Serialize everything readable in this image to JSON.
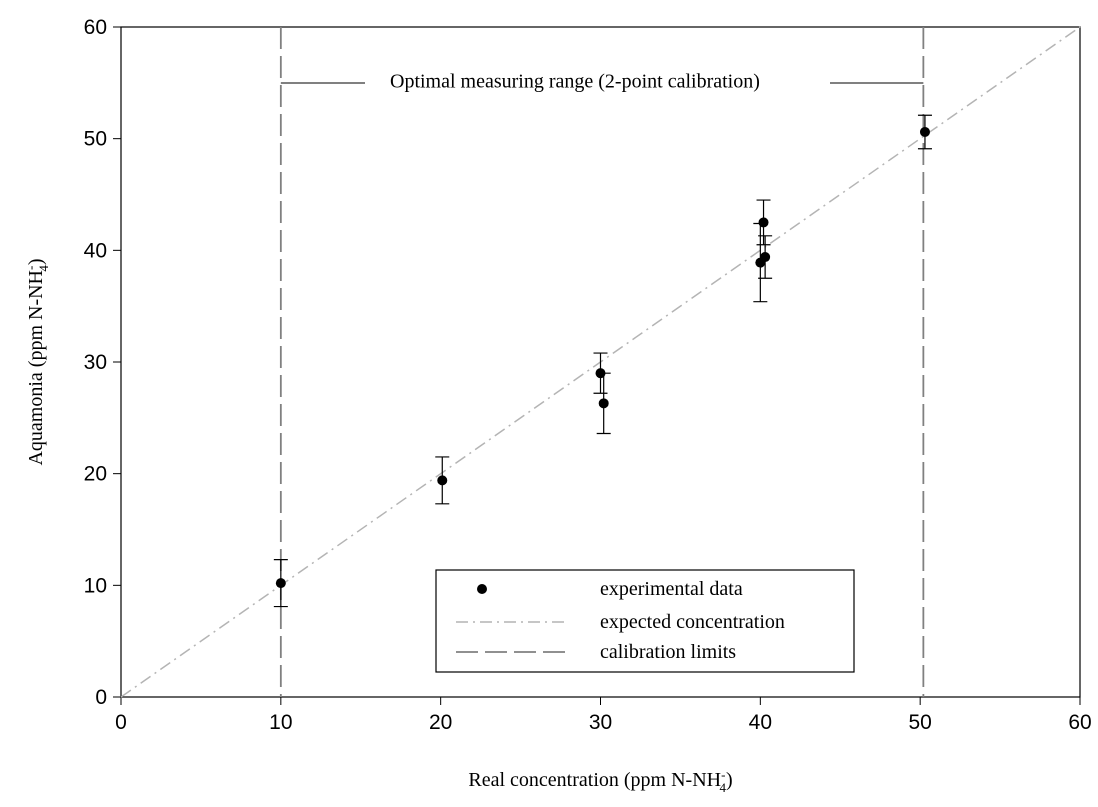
{
  "chart_data": {
    "type": "scatter",
    "xlabel": [
      "Real concentration (ppm N-NH",
      "-",
      "4",
      ")"
    ],
    "ylabel": [
      "Aquamonia (ppm N-NH",
      "-",
      "4",
      ")"
    ],
    "annotation": "Optimal measuring range (2-point calibration)",
    "xlim": [
      0,
      60
    ],
    "ylim": [
      0,
      60
    ],
    "xticks": [
      0,
      10,
      20,
      30,
      40,
      50,
      60
    ],
    "yticks": [
      0,
      10,
      20,
      30,
      40,
      50,
      60
    ],
    "series": [
      {
        "name": "experimental data",
        "color": "#000000",
        "x": [
          10.0,
          20.1,
          30.0,
          30.2,
          40.0,
          40.2,
          40.3,
          50.3
        ],
        "values": [
          10.2,
          19.4,
          29.0,
          26.3,
          38.9,
          42.5,
          39.4,
          50.6
        ],
        "errors": [
          2.1,
          2.1,
          1.8,
          2.7,
          3.5,
          2.0,
          1.9,
          1.5
        ]
      },
      {
        "name": "expected concentration",
        "color": "#b4b4b4",
        "x": [
          0,
          60
        ],
        "values": [
          0,
          60
        ]
      },
      {
        "name": "calibration limits",
        "color": "#808080",
        "x": [
          10,
          50.2
        ]
      }
    ]
  }
}
